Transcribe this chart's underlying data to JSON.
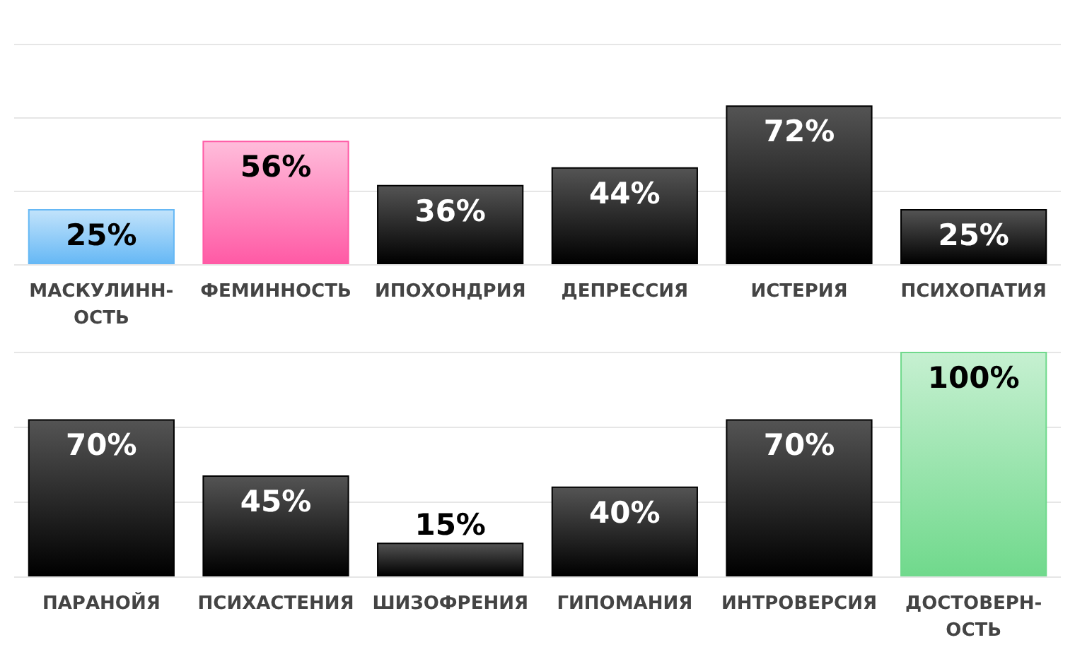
{
  "chart_data": [
    {
      "type": "bar",
      "categories": [
        "МАСКУЛИНН-ОСТЬ",
        "ФЕМИННОСТЬ",
        "ИПОХОНДРИЯ",
        "ДЕПРЕССИЯ",
        "ИСТЕРИЯ",
        "ПСИХОПАТИЯ"
      ],
      "values": [
        25,
        56,
        36,
        44,
        72,
        25
      ],
      "colors": [
        "#66b8f5",
        "#ff5aa5",
        "#000000",
        "#000000",
        "#000000",
        "#000000"
      ],
      "value_labels": [
        "25%",
        "56%",
        "36%",
        "44%",
        "72%",
        "25%"
      ],
      "ylim": [
        0,
        100
      ],
      "yticks": [
        {
          "value": 0,
          "label": null
        },
        {
          "value": 33.3,
          "label": null
        },
        {
          "value": 66.7,
          "label": null
        },
        {
          "value": 100,
          "label": null
        }
      ],
      "grid": "y",
      "tick_labels": "x"
    },
    {
      "type": "bar",
      "categories": [
        "ПАРАНОЙЯ",
        "ПСИХАСТЕНИЯ",
        "ШИЗОФРЕНИЯ",
        "ГИПОМАНИЯ",
        "ИНТРОВЕРСИЯ",
        "ДОСТОВЕРН-ОСТЬ"
      ],
      "values": [
        70,
        45,
        15,
        40,
        70,
        100
      ],
      "colors": [
        "#000000",
        "#000000",
        "#000000",
        "#000000",
        "#000000",
        "#70d98c"
      ],
      "value_labels": [
        "70%",
        "45%",
        "15%",
        "40%",
        "70%",
        "100%"
      ],
      "ylim": [
        0,
        100
      ],
      "yticks": [
        {
          "value": 0,
          "label": null
        },
        {
          "value": 33.3,
          "label": null
        },
        {
          "value": 66.7,
          "label": null
        },
        {
          "value": 100,
          "label": null
        }
      ],
      "grid": "y",
      "tick_labels": "x"
    }
  ]
}
